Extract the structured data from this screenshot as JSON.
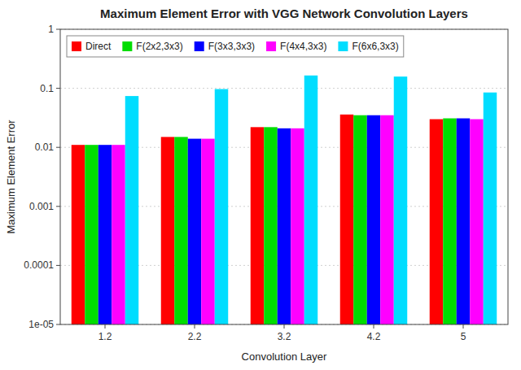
{
  "chart_data": {
    "type": "bar",
    "title": "Maximum Element Error with VGG Network Convolution Layers",
    "xlabel": "Convolution Layer",
    "ylabel": "Maximum Element Error",
    "categories": [
      "1.2",
      "2.2",
      "3.2",
      "4.2",
      "5"
    ],
    "series": [
      {
        "name": "Direct",
        "color": "#ff0000",
        "values": [
          0.011,
          0.015,
          0.022,
          0.036,
          0.03
        ]
      },
      {
        "name": "F(2x2,3x3)",
        "color": "#00dd00",
        "values": [
          0.011,
          0.015,
          0.022,
          0.035,
          0.031
        ]
      },
      {
        "name": "F(3x3,3x3)",
        "color": "#0000ff",
        "values": [
          0.011,
          0.014,
          0.021,
          0.035,
          0.031
        ]
      },
      {
        "name": "F(4x4,3x3)",
        "color": "#ff00ff",
        "values": [
          0.011,
          0.014,
          0.021,
          0.035,
          0.03
        ]
      },
      {
        "name": "F(6x6,3x3)",
        "color": "#00ddff",
        "values": [
          0.074,
          0.097,
          0.165,
          0.158,
          0.085
        ]
      }
    ],
    "ylim": [
      1e-05,
      1.0
    ],
    "yticks": [
      {
        "value": 1e-05,
        "label": "1e-05"
      },
      0.0001,
      0.001,
      0.01,
      0.1,
      1
    ],
    "log": "y",
    "grid": true,
    "legend": "upper left"
  }
}
